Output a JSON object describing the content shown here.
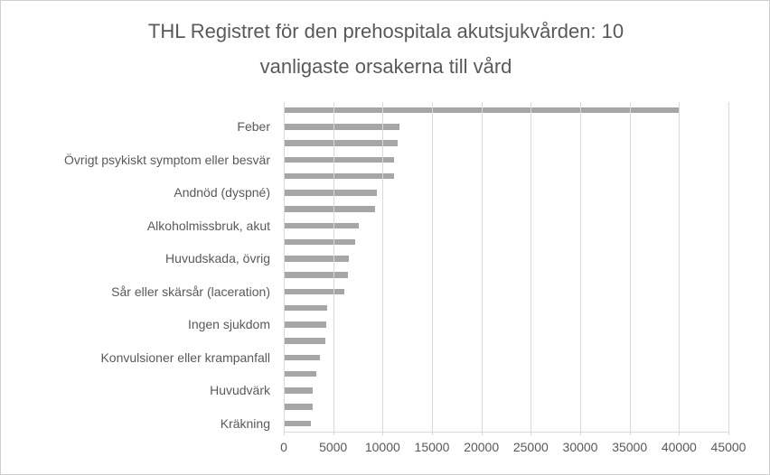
{
  "chart_data": {
    "type": "bar",
    "orientation": "horizontal",
    "title": "THL Registret för den prehospitala akutsjukvården: 10 vanligaste orsakerna till vård",
    "title_lines": [
      "THL Registret för den prehospitala akutsjukvården: 10",
      "vanligaste orsakerna till vård"
    ],
    "categories": [
      "",
      "Feber",
      "",
      "Övrigt psykiskt symptom eller besvär",
      "",
      "Andnöd (dyspné)",
      "",
      "Alkoholmissbruk, akut",
      "",
      "Huvudskada, övrig",
      "",
      "Sår eller skärsår (laceration)",
      "",
      "Ingen sjukdom",
      "",
      "Konvulsioner eller krampanfall",
      "",
      "Huvudvärk",
      "",
      "Kräkning"
    ],
    "values": [
      40000,
      11700,
      11550,
      11150,
      11150,
      9400,
      9200,
      7550,
      7250,
      6600,
      6500,
      6100,
      4400,
      4300,
      4200,
      3650,
      3300,
      2900,
      2900,
      2750
    ],
    "x_ticks": [
      0,
      5000,
      10000,
      15000,
      20000,
      25000,
      30000,
      35000,
      40000,
      45000
    ],
    "xlim": [
      0,
      45000
    ],
    "grid": true,
    "gridlines_over_bars": true,
    "legend_position": "none",
    "category_label_interval": 2,
    "colors": {
      "bar": "#a6a6a6",
      "gridline": "#d9d9d9",
      "axis": "#d9d9d9",
      "text": "#595959",
      "border": "#d0d0d0",
      "background": "#ffffff"
    }
  }
}
